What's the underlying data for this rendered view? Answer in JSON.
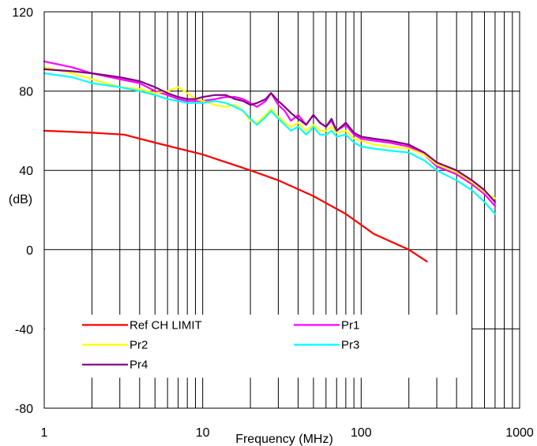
{
  "chart_data": {
    "type": "line",
    "xlabel": "Frequency (MHz)",
    "ylabel": "(dB)",
    "x_scale": "log",
    "xlim": [
      1,
      1000
    ],
    "ylim": [
      -80,
      120
    ],
    "x_ticks": [
      {
        "value": 1,
        "label": "1"
      },
      {
        "value": 10,
        "label": "10"
      },
      {
        "value": 100,
        "label": "100"
      },
      {
        "value": 1000,
        "label": "1000"
      }
    ],
    "y_ticks": [
      {
        "value": -80,
        "label": "-80"
      },
      {
        "value": -40,
        "label": "-40"
      },
      {
        "value": 0,
        "label": "0"
      },
      {
        "value": 40,
        "label": "40"
      },
      {
        "value": 80,
        "label": "80"
      },
      {
        "value": 120,
        "label": "120"
      }
    ],
    "grid": true,
    "legend_position": "bottom-left",
    "series": [
      {
        "name": "Ref CH LIMIT",
        "color": "#ff0000",
        "x": [
          1,
          2,
          3.2,
          5,
          10,
          20,
          30,
          50,
          80,
          120,
          200,
          260
        ],
        "y": [
          60,
          59,
          58,
          54,
          48,
          40,
          35,
          27,
          18,
          8,
          0,
          -6
        ]
      },
      {
        "name": "Pr1",
        "color": "#ff00ff",
        "x": [
          1,
          1.5,
          2,
          3,
          4,
          5,
          6,
          7,
          8,
          9,
          10,
          12,
          14,
          16,
          18,
          20,
          22,
          25,
          27,
          30,
          33,
          36,
          40,
          45,
          50,
          55,
          60,
          65,
          70,
          80,
          90,
          100,
          120,
          150,
          200,
          250,
          300,
          400,
          500,
          600,
          700
        ],
        "y": [
          95,
          92,
          89,
          86,
          84,
          80,
          78,
          76,
          75,
          75,
          75,
          76,
          77,
          77,
          76,
          74,
          72,
          75,
          79,
          73,
          70,
          65,
          68,
          63,
          68,
          64,
          62,
          65,
          60,
          63,
          58,
          56,
          55,
          54,
          52,
          48,
          42,
          38,
          33,
          28,
          22
        ]
      },
      {
        "name": "Pr2",
        "color": "#ffff00",
        "x": [
          1,
          1.5,
          2,
          3,
          4,
          5,
          6,
          7,
          8,
          9,
          10,
          12,
          14,
          16,
          18,
          20,
          22,
          25,
          27,
          30,
          33,
          36,
          40,
          45,
          50,
          55,
          60,
          65,
          70,
          80,
          90,
          100,
          120,
          150,
          200,
          250,
          300,
          400,
          500,
          600,
          700
        ],
        "y": [
          92,
          89,
          86,
          82,
          81,
          79,
          80,
          82,
          79,
          76,
          75,
          73,
          72,
          73,
          70,
          65,
          64,
          68,
          71,
          67,
          64,
          62,
          64,
          60,
          63,
          60,
          60,
          62,
          59,
          60,
          56,
          55,
          53,
          52,
          51,
          48,
          43,
          39,
          34,
          29,
          26
        ]
      },
      {
        "name": "Pr3",
        "color": "#00ffff",
        "x": [
          1,
          1.5,
          2,
          3,
          4,
          5,
          6,
          7,
          8,
          9,
          10,
          12,
          14,
          16,
          18,
          20,
          22,
          25,
          27,
          30,
          33,
          36,
          40,
          45,
          50,
          55,
          60,
          65,
          70,
          80,
          90,
          100,
          120,
          150,
          200,
          250,
          300,
          400,
          500,
          600,
          700
        ],
        "y": [
          89,
          87,
          84,
          82,
          80,
          78,
          76,
          75,
          74,
          74,
          74,
          75,
          74,
          72,
          70,
          66,
          63,
          67,
          70,
          66,
          63,
          60,
          62,
          58,
          62,
          58,
          58,
          60,
          57,
          58,
          54,
          52,
          51,
          50,
          49,
          45,
          40,
          35,
          30,
          24,
          18
        ]
      },
      {
        "name": "Pr4",
        "color": "#800080",
        "x": [
          1,
          1.5,
          2,
          3,
          4,
          5,
          6,
          7,
          8,
          9,
          10,
          12,
          14,
          16,
          18,
          20,
          22,
          25,
          27,
          30,
          33,
          36,
          40,
          45,
          50,
          55,
          60,
          65,
          70,
          80,
          90,
          100,
          120,
          150,
          200,
          250,
          300,
          400,
          500,
          600,
          700
        ],
        "y": [
          91,
          90,
          89,
          87,
          85,
          82,
          79,
          77,
          76,
          76,
          77,
          78,
          78,
          76,
          75,
          73,
          74,
          76,
          79,
          75,
          72,
          69,
          66,
          63,
          68,
          64,
          62,
          66,
          60,
          64,
          59,
          57,
          56,
          55,
          53,
          49,
          44,
          40,
          35,
          30,
          24
        ]
      }
    ]
  }
}
